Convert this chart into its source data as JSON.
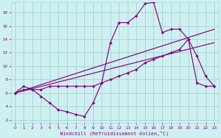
{
  "background_color": "#cef0f0",
  "grid_color": "#aad4d4",
  "line_color": "#880088",
  "xlabel": "Windchill (Refroidissement éolien,°C)",
  "ylim": [
    1.5,
    19.5
  ],
  "xlim": [
    -0.5,
    23.5
  ],
  "yticks": [
    2,
    4,
    6,
    8,
    10,
    12,
    14,
    16,
    18
  ],
  "xticks": [
    0,
    1,
    2,
    3,
    4,
    5,
    6,
    7,
    8,
    9,
    10,
    11,
    12,
    13,
    14,
    15,
    16,
    17,
    18,
    19,
    20,
    21,
    22,
    23
  ],
  "line1_x": [
    0,
    1,
    2,
    3,
    4,
    5,
    6,
    7,
    8,
    9,
    10,
    11,
    12,
    13,
    14,
    15,
    16,
    17,
    18,
    19,
    20,
    21,
    22,
    23
  ],
  "line1_y": [
    6,
    7,
    6.5,
    5.5,
    4.5,
    3.5,
    3.2,
    2.8,
    2.5,
    4.5,
    7.5,
    13.5,
    16.5,
    16.5,
    17.5,
    19.3,
    19.5,
    15.0,
    15.5,
    15.5,
    14.0,
    11.5,
    8.5,
    7.0
  ],
  "line2_x": [
    0,
    1,
    2,
    3,
    4,
    5,
    6,
    7,
    8,
    9,
    10,
    11,
    12,
    13,
    14,
    15,
    16,
    17,
    18,
    19,
    20,
    21,
    22,
    23
  ],
  "line2_y": [
    6,
    6.5,
    6.5,
    6.5,
    7,
    7,
    7,
    7,
    7,
    7,
    7.5,
    8,
    8.5,
    9,
    9.5,
    10.5,
    11,
    11.5,
    12,
    12.5,
    14,
    7.5,
    7,
    7
  ],
  "line3_x": [
    0,
    23
  ],
  "line3_y": [
    6,
    15.5
  ],
  "line4_x": [
    0,
    23
  ],
  "line4_y": [
    6,
    13.5
  ]
}
